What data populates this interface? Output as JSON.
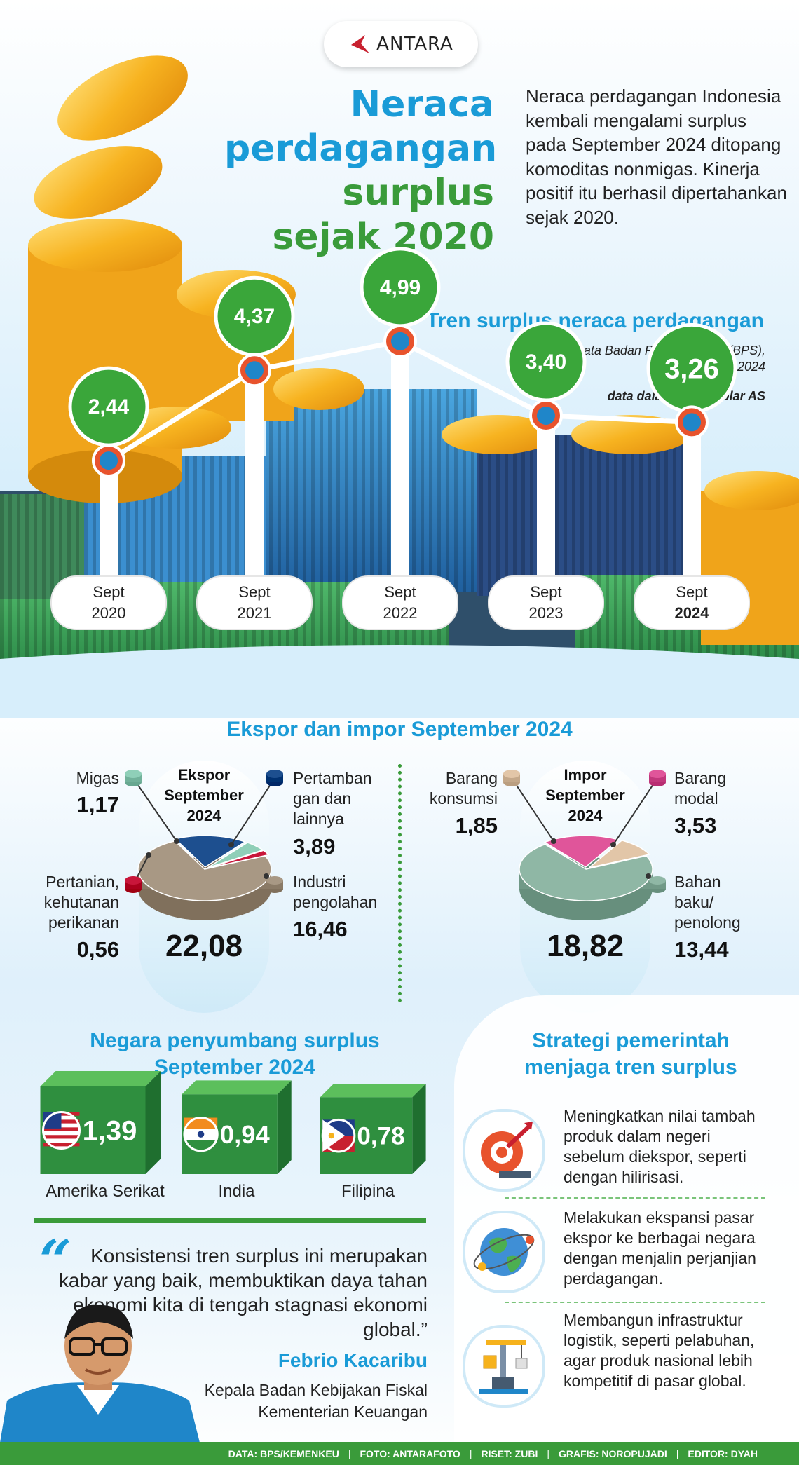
{
  "header": {
    "logo_text": "ANTARA",
    "title_lines": [
      "Neraca",
      "perdagangan",
      "surplus",
      "sejak 2020"
    ],
    "intro": "Neraca perdagangan Indonesia kembali mengalami surplus pada September 2024 ditopang komoditas nonmigas. Kinerja positif itu berhasil dipertahankan sejak 2020."
  },
  "trend": {
    "title": "Tren surplus neraca perdagangan",
    "source_line1": "Data Badan Pusat Statistik (BPS),",
    "source_line2": "14 Oktober 2024",
    "unit": "data dalam miliar dolar AS"
  },
  "chart_data": [
    {
      "type": "line",
      "title": "Tren surplus neraca perdagangan",
      "categories": [
        "Sept 2020",
        "Sept 2021",
        "Sept 2022",
        "Sept 2023",
        "Sept 2024"
      ],
      "category_lines": [
        [
          "Sept",
          "2020"
        ],
        [
          "Sept",
          "2021"
        ],
        [
          "Sept",
          "2022"
        ],
        [
          "Sept",
          "2023"
        ],
        [
          "Sept",
          "2024"
        ]
      ],
      "values": [
        2.44,
        4.37,
        4.99,
        3.4,
        3.26
      ],
      "value_labels": [
        "2,44",
        "4,37",
        "4,99",
        "3,40",
        "3,26"
      ],
      "ylim": [
        0,
        5.5
      ]
    },
    {
      "type": "pie",
      "title": "Ekspor September 2024",
      "total": "22,08",
      "slices": [
        {
          "label": "Industri pengolahan",
          "value": 16.46,
          "value_label": "16,46",
          "color": "#a89884"
        },
        {
          "label": "Pertambangan dan lainnya",
          "value": 3.89,
          "value_label": "3,89",
          "color": "#1d4f8f"
        },
        {
          "label": "Migas",
          "value": 1.17,
          "value_label": "1,17",
          "color": "#8fcfb8"
        },
        {
          "label": "Pertanian, kehutanan perikanan",
          "value": 0.56,
          "value_label": "0,56",
          "color": "#c8163a"
        }
      ]
    },
    {
      "type": "pie",
      "title": "Impor September 2024",
      "total": "18,82",
      "slices": [
        {
          "label": "Bahan baku/penolong",
          "value": 13.44,
          "value_label": "13,44",
          "color": "#8fb7a5"
        },
        {
          "label": "Barang modal",
          "value": 3.53,
          "value_label": "3,53",
          "color": "#e0559a"
        },
        {
          "label": "Barang konsumsi",
          "value": 1.85,
          "value_label": "1,85",
          "color": "#e2c6a8"
        }
      ]
    },
    {
      "type": "bar",
      "title": "Negara penyumbang surplus September 2024",
      "categories": [
        "Amerika Serikat",
        "India",
        "Filipina"
      ],
      "values": [
        1.39,
        0.94,
        0.78
      ],
      "value_labels": [
        "1,39",
        "0,94",
        "0,78"
      ]
    }
  ],
  "exim": {
    "title": "Ekspor dan impor September 2024",
    "export": {
      "title_lines": [
        "Ekspor",
        "September",
        "2024"
      ],
      "total": "22,08",
      "labels": {
        "migas": {
          "lines": [
            "Migas"
          ],
          "value": "1,17"
        },
        "tambang": {
          "lines": [
            "Pertamban",
            "gan dan",
            "lainnya"
          ],
          "value": "3,89"
        },
        "tani": {
          "lines": [
            "Pertanian,",
            "kehutanan",
            "perikanan"
          ],
          "value": "0,56"
        },
        "industri": {
          "lines": [
            "Industri",
            "pengolahan"
          ],
          "value": "16,46"
        }
      }
    },
    "import": {
      "title_lines": [
        "Impor",
        "September",
        "2024"
      ],
      "total": "18,82",
      "labels": {
        "konsumsi": {
          "lines": [
            "Barang",
            "konsumsi"
          ],
          "value": "1,85"
        },
        "modal": {
          "lines": [
            "Barang",
            "modal"
          ],
          "value": "3,53"
        },
        "baku": {
          "lines": [
            "Bahan",
            "baku/",
            "penolong"
          ],
          "value": "13,44"
        }
      }
    }
  },
  "countries": {
    "title_lines": [
      "Negara penyumbang surplus",
      "September 2024"
    ],
    "items": [
      {
        "name": "Amerika Serikat",
        "value": "1,39",
        "flag": "usa-flag"
      },
      {
        "name": "India",
        "value": "0,94",
        "flag": "india-flag"
      },
      {
        "name": "Filipina",
        "value": "0,78",
        "flag": "philippines-flag"
      }
    ]
  },
  "quote": {
    "text": "Konsistensi tren surplus ini merupakan kabar yang baik, membuktikan daya tahan ekonomi kita di tengah stagnasi ekonomi global.”",
    "name": "Febrio Kacaribu",
    "role_line1": "Kepala Badan Kebijakan Fiskal",
    "role_line2": "Kementerian Keuangan"
  },
  "strategy": {
    "title_lines": [
      "Strategi pemerintah",
      "menjaga tren surplus"
    ],
    "items": [
      {
        "icon": "factory-arrow-icon",
        "text": "Meningkatkan nilai tambah produk dalam negeri sebelum diekspor, seperti dengan hilirisasi."
      },
      {
        "icon": "globe-icon",
        "text": "Melakukan ekspansi pasar ekspor ke berbagai negara dengan menjalin perjanjian perdagangan."
      },
      {
        "icon": "port-crane-icon",
        "text": "Membangun infrastruktur logistik, seperti pelabuhan, agar produk nasional lebih kompetitif di pasar global."
      }
    ]
  },
  "footer": {
    "items": [
      "DATA: BPS/KEMENKEU",
      "FOTO: ANTARAFOTO",
      "RISET: ZUBI",
      "GRAFIS: NOROPUJADI",
      "EDITOR: DYAH"
    ]
  },
  "colors": {
    "blue": "#1a9bd7",
    "green": "#3a9b3a",
    "coin": "#f6b21c",
    "marker": "#e8532d"
  }
}
